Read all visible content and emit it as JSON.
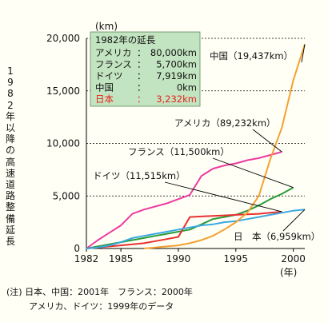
{
  "chart_data": {
    "type": "line",
    "ylabel": "1982年以降の高速道路整備延長",
    "yunit": "(km)",
    "xunit": "(年)",
    "xlim": [
      1982,
      2001
    ],
    "ylim": [
      0,
      20000
    ],
    "xticks": [
      "1982",
      "1985",
      "1990",
      "1995",
      "2000"
    ],
    "yticks": [
      "0",
      "5,000",
      "10,000",
      "15,000",
      "20,000"
    ],
    "grid": "horizontal dashed at 5,000 / 10,000 / 15,000 / 20,000",
    "box": {
      "title": "1982年の延長",
      "rows": [
        {
          "label": "アメリカ",
          "value": "80,000km",
          "color": "#111111"
        },
        {
          "label": "フランス",
          "value": "5,700km",
          "color": "#111111"
        },
        {
          "label": "ドイツ",
          "value": "7,919km",
          "color": "#111111"
        },
        {
          "label": "中国",
          "value": "0km",
          "color": "#111111"
        },
        {
          "label": "日本",
          "value": "3,232km",
          "color": "#e8201a"
        }
      ]
    },
    "series": [
      {
        "name": "アメリカ",
        "label": "アメリカ（89,232km）",
        "color": "#ee3aa0",
        "x": [
          1982,
          1983,
          1984,
          1985,
          1986,
          1987,
          1988,
          1989,
          1990,
          1991,
          1992,
          1993,
          1994,
          1995,
          1996,
          1997,
          1998,
          1999
        ],
        "y": [
          0,
          800,
          1500,
          2200,
          3300,
          3700,
          4000,
          4300,
          4700,
          5100,
          6900,
          7600,
          7900,
          8100,
          8400,
          8600,
          8900,
          9200
        ]
      },
      {
        "name": "フランス",
        "label": "フランス（11,500km）",
        "color": "#2a9a3a",
        "x": [
          1982,
          1983,
          1984,
          1985,
          1986,
          1987,
          1988,
          1989,
          1990,
          1991,
          1992,
          1993,
          1994,
          1995,
          1996,
          1997,
          1998,
          1999,
          2000
        ],
        "y": [
          0,
          200,
          400,
          600,
          800,
          1000,
          1200,
          1400,
          1600,
          1800,
          2300,
          2800,
          3000,
          3200,
          3600,
          4100,
          4700,
          5200,
          5800
        ]
      },
      {
        "name": "ドイツ",
        "label": "ドイツ（11,515km）",
        "color": "#e83030",
        "x": [
          1982,
          1983,
          1984,
          1985,
          1986,
          1987,
          1988,
          1989,
          1990,
          1991,
          1992,
          1993,
          1994,
          1995,
          1996,
          1997,
          1998,
          1999
        ],
        "y": [
          0,
          100,
          200,
          300,
          400,
          500,
          700,
          900,
          1100,
          3000,
          3050,
          3100,
          3150,
          3200,
          3250,
          3300,
          3400,
          3500
        ]
      },
      {
        "name": "日本",
        "label": "日　本（6,959km）",
        "color": "#3aa8e0",
        "x": [
          1982,
          1983,
          1984,
          1985,
          1986,
          1987,
          1988,
          1989,
          1990,
          1991,
          1992,
          1993,
          1994,
          1995,
          1996,
          1997,
          1998,
          1999,
          2000,
          2001
        ],
        "y": [
          0,
          100,
          300,
          600,
          1000,
          1200,
          1400,
          1600,
          1800,
          2000,
          2200,
          2300,
          2500,
          2600,
          2800,
          3000,
          3200,
          3400,
          3600,
          3700
        ]
      },
      {
        "name": "中国",
        "label": "中国（19,437km）",
        "color": "#f5a030",
        "x": [
          1987,
          1988,
          1989,
          1990,
          1991,
          1992,
          1993,
          1994,
          1995,
          1996,
          1997,
          1998,
          1999,
          2000,
          2001
        ],
        "y": [
          0,
          100,
          200,
          300,
          500,
          800,
          1200,
          1800,
          2500,
          3400,
          5000,
          8500,
          11500,
          16000,
          19437
        ]
      }
    ]
  },
  "notes": {
    "line1": "(注) 日本、中国：2001年　フランス：2000年",
    "line2": "アメリカ、ドイツ：1999年のデータ"
  }
}
